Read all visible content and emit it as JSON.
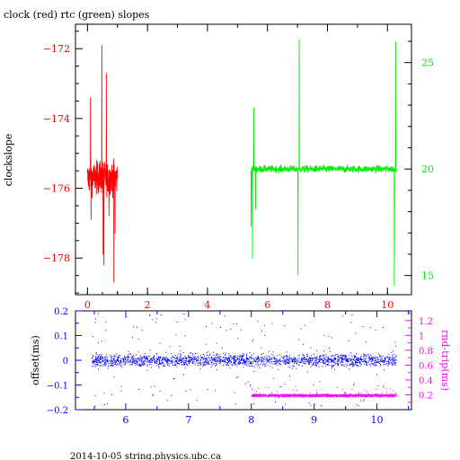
{
  "page": {
    "title": "clock (red) rtc (green) slopes",
    "footer": "2014-10-05 string.physics.ubc.ca"
  },
  "colors": {
    "clock": "#ff0000",
    "rtc": "#00ee00",
    "offset": "#0000ff",
    "rndtrip": "#ff00ff",
    "axis": "#000000"
  },
  "chart_data": [
    {
      "type": "line",
      "title": "clock (red) rtc (green) slopes",
      "xlabel": "",
      "ylabel": "clockslope",
      "xlim": [
        -0.4,
        10.8
      ],
      "ylim": [
        -179.05,
        -171.3
      ],
      "xticks": [
        0,
        2,
        4,
        6,
        8,
        10
      ],
      "yticks_left": [
        -172,
        -174,
        -176,
        -178
      ],
      "y2lim": [
        14.1,
        26.8
      ],
      "yticks_right": [
        15,
        20,
        25
      ],
      "grid": false,
      "series": [
        {
          "color": "#ff0000",
          "axis": "left",
          "x_range": [
            0.0,
            1.0
          ],
          "typical_range": [
            -176.4,
            -175.0
          ],
          "center": -175.7,
          "spikes": [
            {
              "x": 0.1,
              "y": -173.4
            },
            {
              "x": 0.12,
              "y": -176.9
            },
            {
              "x": 0.48,
              "y": -171.9
            },
            {
              "x": 0.52,
              "y": -177.9
            },
            {
              "x": 0.55,
              "y": -178.2
            },
            {
              "x": 0.63,
              "y": -172.7
            },
            {
              "x": 0.72,
              "y": -176.8
            },
            {
              "x": 0.88,
              "y": -178.7
            },
            {
              "x": 0.92,
              "y": -177.3
            }
          ]
        },
        {
          "color": "#00ee00",
          "axis": "right",
          "x_range": [
            5.45,
            10.3
          ],
          "typical_range": [
            19.6,
            20.4
          ],
          "center": 20.0,
          "spikes": [
            {
              "x": 5.46,
              "y": 17.3
            },
            {
              "x": 5.5,
              "y": 15.8
            },
            {
              "x": 5.54,
              "y": 22.9
            },
            {
              "x": 5.6,
              "y": 18.1
            },
            {
              "x": 7.02,
              "y": 15.0
            },
            {
              "x": 7.06,
              "y": 26.1
            },
            {
              "x": 10.23,
              "y": 14.5
            },
            {
              "x": 10.27,
              "y": 26.0
            }
          ]
        }
      ]
    },
    {
      "type": "scatter",
      "xlabel": "",
      "ylabel": "offset(ms)",
      "y2label": "rnd-trip(ms)",
      "xlim": [
        5.2,
        10.55
      ],
      "ylim": [
        -0.2,
        0.2
      ],
      "xticks": [
        6,
        7,
        8,
        9,
        10
      ],
      "yticks_left": [
        -0.2,
        -0.1,
        0,
        0.1,
        0.2
      ],
      "yticks_left_labels": [
        "−0.2",
        "−0.1",
        "0",
        "0.1",
        "0.2"
      ],
      "y2lim": [
        0.0,
        1.33
      ],
      "yticks_right": [
        0.2,
        0.4,
        0.6,
        0.8,
        1.0,
        1.2
      ],
      "yticks_right_labels": [
        "0.2",
        "0.4",
        "0.6",
        "0.8",
        "1",
        "1.2"
      ],
      "grid": false,
      "series": [
        {
          "color": "#0000ff",
          "axis": "left",
          "x_range": [
            5.45,
            10.3
          ],
          "center": 0.0,
          "band_halfwidth": 0.03
        },
        {
          "color": "#ff00ff",
          "axis": "right",
          "x_range": [
            8.0,
            10.3
          ],
          "center": 0.19,
          "band_halfwidth": 0.03
        }
      ]
    }
  ]
}
